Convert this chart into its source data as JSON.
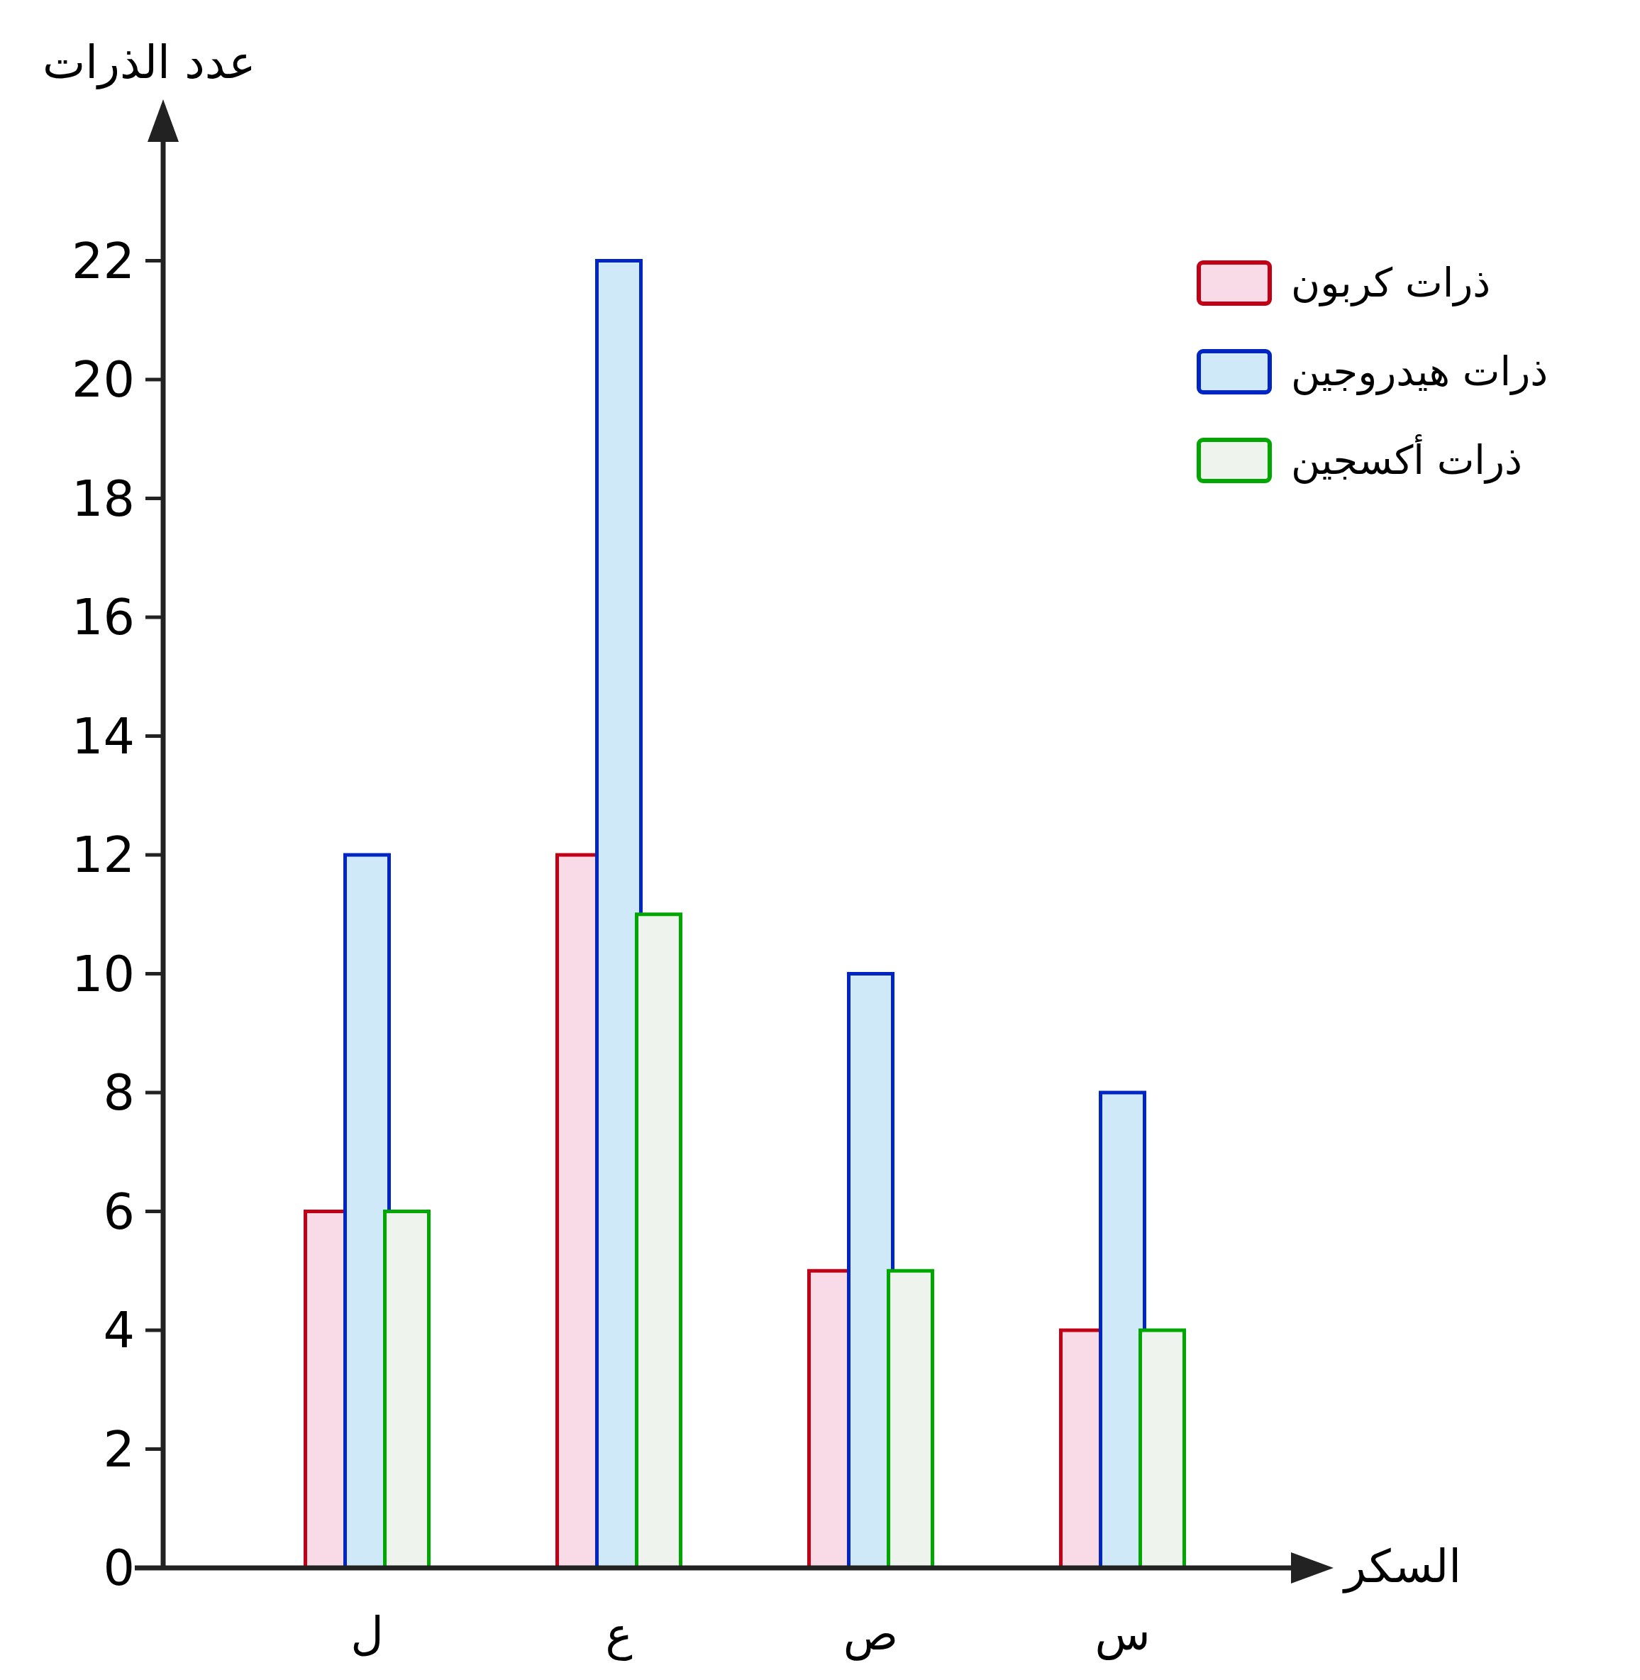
{
  "chart_data": {
    "type": "bar",
    "ylabel": "عدد الذرات",
    "xlabel": "السكر",
    "categories": [
      "ل",
      "ع",
      "ص",
      "س"
    ],
    "series": [
      {
        "name": "ذرات كربون",
        "color": "#f8dbe6",
        "values": [
          6,
          12,
          5,
          4
        ]
      },
      {
        "name": "ذرات هيدروجين",
        "color": "#cfe9f8",
        "values": [
          12,
          22,
          10,
          8
        ]
      },
      {
        "name": "ذرات أكسجين",
        "color": "#eef3ee",
        "values": [
          6,
          11,
          5,
          4
        ]
      }
    ],
    "ylim": [
      0,
      24
    ],
    "yticks": [
      0,
      2,
      4,
      6,
      8,
      10,
      12,
      14,
      16,
      18,
      20,
      22
    ],
    "grid": false,
    "legend": "top right"
  }
}
